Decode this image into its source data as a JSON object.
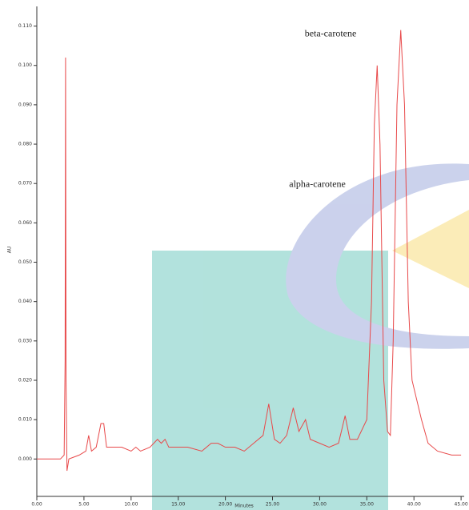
{
  "chart_data": {
    "type": "line",
    "xlabel": "Minutes",
    "ylabel": "AU",
    "annotations": [
      {
        "text": "beta-carotene",
        "x": 38.6,
        "y": 0.109
      },
      {
        "text": "alpha-carotene",
        "x": 36.1,
        "y": 0.1
      }
    ],
    "x": [
      0,
      2.5,
      2.9,
      3.0,
      3.05,
      3.1,
      3.2,
      3.4,
      4.5,
      5.2,
      5.5,
      5.8,
      6.3,
      6.8,
      7.1,
      7.4,
      8,
      9,
      10,
      10.5,
      11,
      12,
      12.8,
      13.2,
      13.6,
      14,
      15,
      16,
      17.5,
      18.5,
      19.2,
      20,
      21,
      22,
      23,
      24,
      24.6,
      25.2,
      25.8,
      26.5,
      27.2,
      27.8,
      28.5,
      29.0,
      30,
      31,
      32,
      32.7,
      33.2,
      34,
      35,
      35.5,
      35.8,
      36.1,
      36.4,
      36.8,
      37.2,
      37.5,
      37.8,
      38.2,
      38.6,
      39.0,
      39.4,
      39.8,
      40.3,
      40.8,
      41.5,
      42.5,
      44,
      45
    ],
    "values": [
      0.0,
      0.0,
      0.001,
      0.025,
      0.102,
      0.02,
      -0.003,
      0.0,
      0.001,
      0.002,
      0.006,
      0.002,
      0.003,
      0.009,
      0.009,
      0.003,
      0.003,
      0.003,
      0.002,
      0.003,
      0.002,
      0.003,
      0.005,
      0.004,
      0.005,
      0.003,
      0.003,
      0.003,
      0.002,
      0.004,
      0.004,
      0.003,
      0.003,
      0.002,
      0.004,
      0.006,
      0.014,
      0.005,
      0.004,
      0.006,
      0.013,
      0.007,
      0.01,
      0.005,
      0.004,
      0.003,
      0.004,
      0.011,
      0.005,
      0.005,
      0.01,
      0.04,
      0.085,
      0.1,
      0.08,
      0.02,
      0.007,
      0.006,
      0.03,
      0.09,
      0.109,
      0.09,
      0.04,
      0.02,
      0.015,
      0.01,
      0.004,
      0.002,
      0.001,
      0.001
    ],
    "color": "#e8494a",
    "xlim": [
      0,
      45.5
    ],
    "ylim": [
      -0.0095,
      0.115
    ],
    "xticks": [
      {
        "value": 0,
        "label": "0.00"
      },
      {
        "value": 5,
        "label": "5.00"
      },
      {
        "value": 10,
        "label": "10.00"
      },
      {
        "value": 15,
        "label": "15.00"
      },
      {
        "value": 20,
        "label": "20.00"
      },
      {
        "value": 25,
        "label": "25.00"
      },
      {
        "value": 30,
        "label": "30.00"
      },
      {
        "value": 35,
        "label": "35.00"
      },
      {
        "value": 40,
        "label": "40.00"
      },
      {
        "value": 45,
        "label": "45.00"
      }
    ],
    "yticks": [
      {
        "value": 0,
        "label": "0.000"
      },
      {
        "value": 0.01,
        "label": "0.010"
      },
      {
        "value": 0.02,
        "label": "0.020"
      },
      {
        "value": 0.03,
        "label": "0.030"
      },
      {
        "value": 0.04,
        "label": "0.040"
      },
      {
        "value": 0.05,
        "label": "0.050"
      },
      {
        "value": 0.06,
        "label": "0.060"
      },
      {
        "value": 0.07,
        "label": "0.070"
      },
      {
        "value": 0.08,
        "label": "0.080"
      },
      {
        "value": 0.09,
        "label": "0.090"
      },
      {
        "value": 0.1,
        "label": "0.100"
      },
      {
        "value": 0.11,
        "label": "0.110"
      }
    ]
  }
}
